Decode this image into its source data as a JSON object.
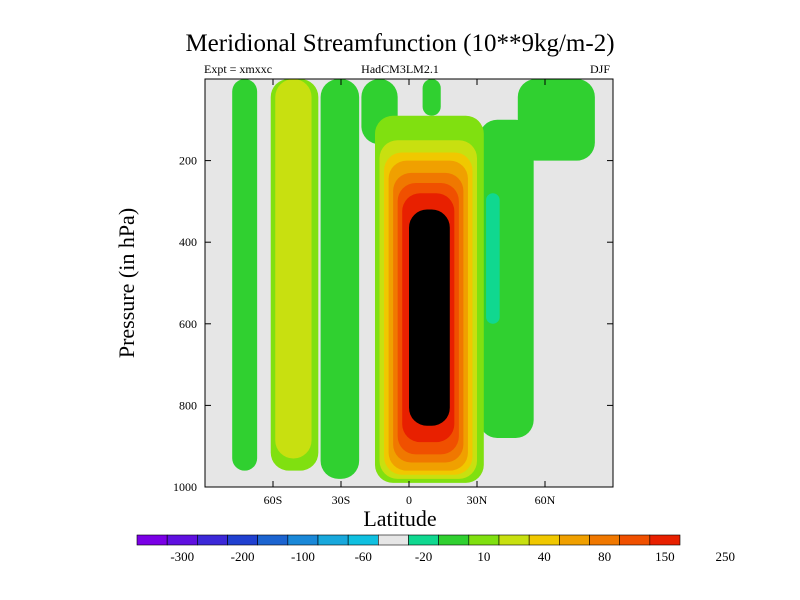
{
  "title": "Meridional Streamfunction (10**9kg/m-2)",
  "expt_label": "Expt = xmxxc",
  "model_label": "HadCM3LM2.1",
  "season_label": "DJF",
  "colors": {
    "background": "#ffffff",
    "missing": "#e6e6e6",
    "scale": [
      "#7a00e6",
      "#5f10e0",
      "#3c28d8",
      "#2040d0",
      "#1c64d0",
      "#1a88d8",
      "#18a8dc",
      "#10c0e0",
      "#e6e6e6",
      "#10d890",
      "#30d030",
      "#80e010",
      "#c8e010",
      "#f0c800",
      "#f0a000",
      "#f07800",
      "#f05000",
      "#e82000"
    ]
  },
  "chart_data": {
    "type": "heatmap",
    "subtype": "filled-contour",
    "title": "Meridional Streamfunction (10**9kg/m-2)",
    "xlabel": "Latitude",
    "ylabel": "Pressure (in hPa)",
    "x_range": [
      -90,
      90
    ],
    "y_range": [
      1000,
      0
    ],
    "y_reversed": true,
    "x_ticks": [
      {
        "value": -60,
        "label": "60S"
      },
      {
        "value": -30,
        "label": "30S"
      },
      {
        "value": 0,
        "label": "0"
      },
      {
        "value": 30,
        "label": "30N"
      },
      {
        "value": 60,
        "label": "60N"
      }
    ],
    "y_ticks": [
      {
        "value": 200,
        "label": "200"
      },
      {
        "value": 400,
        "label": "400"
      },
      {
        "value": 600,
        "label": "600"
      },
      {
        "value": 800,
        "label": "800"
      },
      {
        "value": 1000,
        "label": "1000"
      }
    ],
    "colorbar_labels": [
      "-300",
      "-200",
      "-100",
      "-60",
      "-20",
      "10",
      "40",
      "80",
      "150",
      "250"
    ],
    "colorbar_levels": [
      -300,
      -250,
      -200,
      -150,
      -100,
      -80,
      -60,
      -40,
      -20,
      -10,
      10,
      20,
      40,
      60,
      80,
      100,
      150,
      200,
      250
    ],
    "filled_regions": [
      {
        "level": -10,
        "lat": [
          -78,
          -67
        ],
        "p": [
          0,
          960
        ]
      },
      {
        "level": 10,
        "lat": [
          -61,
          -40
        ],
        "p": [
          0,
          960
        ]
      },
      {
        "level": 20,
        "lat": [
          -59,
          -43
        ],
        "p": [
          0,
          930
        ]
      },
      {
        "level": -10,
        "lat": [
          -39,
          -22
        ],
        "p": [
          0,
          980
        ]
      },
      {
        "level": -10,
        "lat": [
          -21,
          -5
        ],
        "p": [
          0,
          160
        ]
      },
      {
        "level": -10,
        "lat": [
          31,
          55
        ],
        "p": [
          100,
          880
        ]
      },
      {
        "level": -20,
        "lat": [
          34,
          40
        ],
        "p": [
          280,
          600
        ]
      },
      {
        "level": -10,
        "lat": [
          48,
          82
        ],
        "p": [
          0,
          200
        ]
      },
      {
        "level": -10,
        "lat": [
          6,
          14
        ],
        "p": [
          0,
          90
        ]
      },
      {
        "level": 10,
        "lat": [
          -15,
          33
        ],
        "p": [
          90,
          990
        ]
      },
      {
        "level": 20,
        "lat": [
          -13,
          30
        ],
        "p": [
          150,
          980
        ]
      },
      {
        "level": 40,
        "lat": [
          -11,
          28
        ],
        "p": [
          180,
          970
        ]
      },
      {
        "level": 60,
        "lat": [
          -9,
          26
        ],
        "p": [
          200,
          960
        ]
      },
      {
        "level": 80,
        "lat": [
          -7,
          24
        ],
        "p": [
          230,
          940
        ]
      },
      {
        "level": 100,
        "lat": [
          -5,
          22
        ],
        "p": [
          255,
          920
        ]
      },
      {
        "level": 150,
        "lat": [
          -3,
          20
        ],
        "p": [
          280,
          890
        ]
      },
      {
        "level": 200,
        "lat": [
          0,
          18
        ],
        "p": [
          320,
          850
        ]
      },
      {
        "level": 250,
        "lat": [
          4,
          16
        ],
        "p": [
          340,
          820
        ]
      }
    ]
  }
}
